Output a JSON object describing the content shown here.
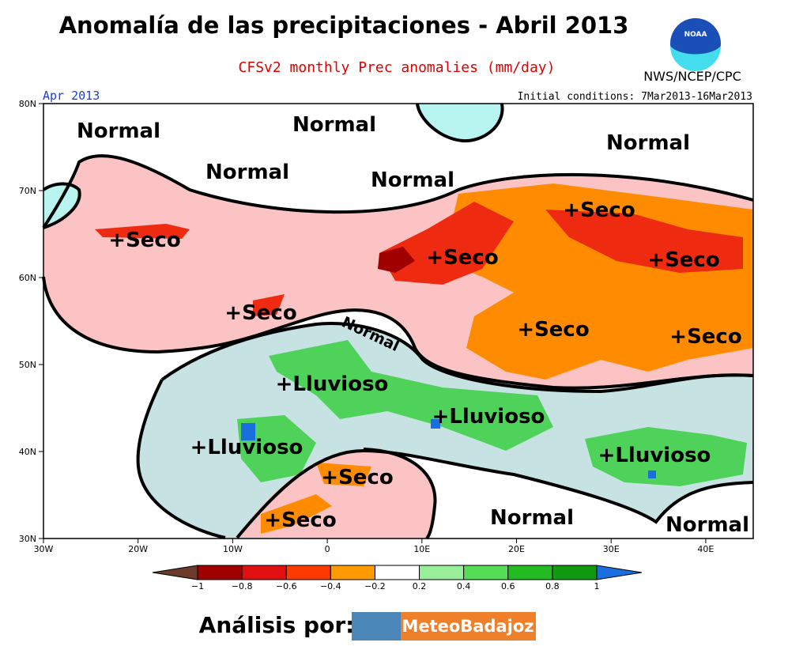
{
  "header": {
    "title": "Anomalía de las precipitaciones - Abril 2013",
    "subtitle": "CFSv2 monthly Prec anomalies (mm/day)",
    "agency": "NWS/NCEP/CPC",
    "logo": "NOAA"
  },
  "map": {
    "period": "Apr 2013",
    "initial_conditions": "Initial conditions: 7Mar2013-16Mar2013",
    "lat_labels": [
      "80N",
      "70N",
      "60N",
      "50N",
      "40N",
      "30N"
    ],
    "lon_labels": [
      "30W",
      "20W",
      "10W",
      "0",
      "10E",
      "20E",
      "30E",
      "40E"
    ],
    "regions": [
      "Normal",
      "Normal",
      "Normal",
      "Normal",
      "Normal",
      "+Seco",
      "+Seco",
      "+Seco",
      "+Seco",
      "+Seco",
      "Normal",
      "+Seco",
      "+Seco",
      "+Lluvioso",
      "+Lluvioso",
      "+Lluvioso",
      "+Lluvioso",
      "+Seco",
      "+Seco",
      "Normal",
      "Normal"
    ]
  },
  "colorbar": {
    "labels": [
      "−1",
      "−0.8",
      "−0.6",
      "−0.4",
      "−0.2",
      "0.2",
      "0.4",
      "0.6",
      "0.8",
      "1"
    ],
    "colors": [
      "#6b3a2a",
      "#a00000",
      "#e01010",
      "#ff3a00",
      "#ff9a00",
      "#ffffff",
      "#99ee99",
      "#55dd55",
      "#22bb22",
      "#119911",
      "#1a6fe0"
    ]
  },
  "footer": {
    "label": "Análisis por:",
    "brand": "MeteoBadajoz"
  }
}
